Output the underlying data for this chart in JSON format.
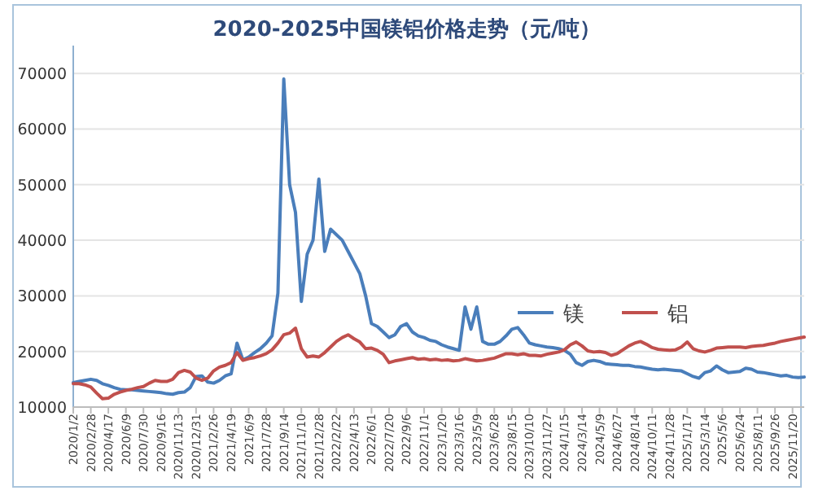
{
  "chart_data": {
    "type": "line",
    "title": "2020-2025中国镁铝价格走势（元/吨）",
    "categories": [
      "2020/1/2",
      null,
      null,
      "2020/2/28",
      null,
      null,
      "2020/4/17",
      null,
      null,
      "2020/6/9",
      null,
      null,
      "2020/7/30",
      null,
      null,
      "2020/9/16",
      null,
      null,
      "2020/11/13",
      null,
      null,
      "2020/12/31",
      null,
      null,
      "2021/2/26",
      null,
      null,
      "2021/4/19",
      null,
      null,
      "2021/6/9",
      null,
      null,
      "2021/7/28",
      null,
      null,
      "2021/9/14",
      null,
      null,
      "2021/11/10",
      null,
      null,
      "2021/12/28",
      null,
      null,
      "2022/2/22",
      null,
      null,
      "2022/4/13",
      null,
      null,
      "2022/6/1",
      null,
      null,
      "2022/7/20",
      null,
      null,
      "2022/9/6",
      null,
      null,
      "2022/11/1",
      null,
      null,
      "2023/1/20",
      null,
      null,
      "2023/3/16",
      null,
      null,
      "2023/5/9",
      null,
      null,
      "2023/6/28",
      null,
      null,
      "2023/8/15",
      null,
      null,
      "2023/10/10",
      null,
      null,
      "2023/11/27",
      null,
      null,
      "2024/1/15",
      null,
      null,
      "2024/3/14",
      null,
      null,
      "2024/5/9",
      null,
      null,
      "2024/6/27",
      null,
      null,
      "2024/8/14",
      null,
      null,
      "2024/10/11",
      null,
      null,
      "2024/11/28",
      null,
      null,
      "2025/1/17",
      null,
      null,
      "2025/3/14",
      null,
      null,
      "2025/5/6",
      null,
      null,
      "2025/6/24",
      null,
      null,
      "2025/8/11",
      null,
      null,
      "2025/9/26",
      null,
      null,
      "2025/11/20",
      null,
      null
    ],
    "series": [
      {
        "name": "镁",
        "color": "#4a7ebb",
        "values": [
          14400,
          14600,
          14800,
          15000,
          14800,
          14200,
          13900,
          13500,
          13200,
          13100,
          13100,
          13000,
          12900,
          12800,
          12700,
          12600,
          12400,
          12300,
          12600,
          12700,
          13500,
          15500,
          15600,
          14500,
          14300,
          14800,
          15600,
          16000,
          21500,
          18500,
          19000,
          19800,
          20500,
          21500,
          22800,
          30500,
          69000,
          50000,
          45000,
          29000,
          37500,
          40000,
          51000,
          38000,
          42000,
          41000,
          40000,
          38000,
          36000,
          34000,
          30000,
          25000,
          24500,
          23500,
          22500,
          23000,
          24500,
          25000,
          23500,
          22800,
          22500,
          22000,
          21800,
          21200,
          20800,
          20500,
          20200,
          28000,
          24000,
          28000,
          21800,
          21300,
          21300,
          21800,
          22800,
          24000,
          24300,
          23000,
          21500,
          21200,
          21000,
          20800,
          20700,
          20500,
          20200,
          19500,
          18000,
          17500,
          18200,
          18400,
          18200,
          17800,
          17700,
          17600,
          17500,
          17500,
          17300,
          17200,
          17000,
          16800,
          16700,
          16800,
          16700,
          16600,
          16500,
          16000,
          15500,
          15200,
          16200,
          16500,
          17400,
          16700,
          16200,
          16300,
          16400,
          17000,
          16800,
          16300,
          16200,
          16000,
          15800,
          15600,
          15700,
          15400,
          15300,
          15400
        ]
      },
      {
        "name": "铝",
        "color": "#c0504d",
        "values": [
          14200,
          14200,
          14000,
          13600,
          12500,
          11500,
          11600,
          12300,
          12700,
          13000,
          13200,
          13500,
          13700,
          14300,
          14800,
          14600,
          14600,
          15000,
          16200,
          16600,
          16300,
          15200,
          14800,
          15200,
          16500,
          17200,
          17500,
          18000,
          19800,
          18400,
          18700,
          18900,
          19200,
          19600,
          20300,
          21500,
          23000,
          23300,
          24200,
          20500,
          19000,
          19200,
          19000,
          19800,
          20800,
          21800,
          22500,
          23000,
          22300,
          21700,
          20500,
          20600,
          20200,
          19500,
          18000,
          18300,
          18500,
          18700,
          18900,
          18600,
          18700,
          18500,
          18600,
          18400,
          18500,
          18300,
          18400,
          18700,
          18500,
          18300,
          18400,
          18600,
          18800,
          19200,
          19600,
          19600,
          19400,
          19600,
          19300,
          19300,
          19200,
          19500,
          19700,
          19900,
          20300,
          21200,
          21700,
          21000,
          20100,
          19900,
          20000,
          19800,
          19300,
          19600,
          20300,
          21000,
          21500,
          21800,
          21300,
          20700,
          20400,
          20300,
          20200,
          20300,
          20800,
          21700,
          20500,
          20100,
          19900,
          20200,
          20600,
          20700,
          20800,
          20800,
          20800,
          20700,
          20900,
          21000,
          21100,
          21300,
          21500,
          21800,
          22000,
          22200,
          22400,
          22600
        ]
      }
    ],
    "ylim": [
      10000,
      75000
    ],
    "yticks": [
      10000,
      20000,
      30000,
      40000,
      50000,
      60000,
      70000
    ],
    "grid": "y",
    "legend": "right"
  }
}
